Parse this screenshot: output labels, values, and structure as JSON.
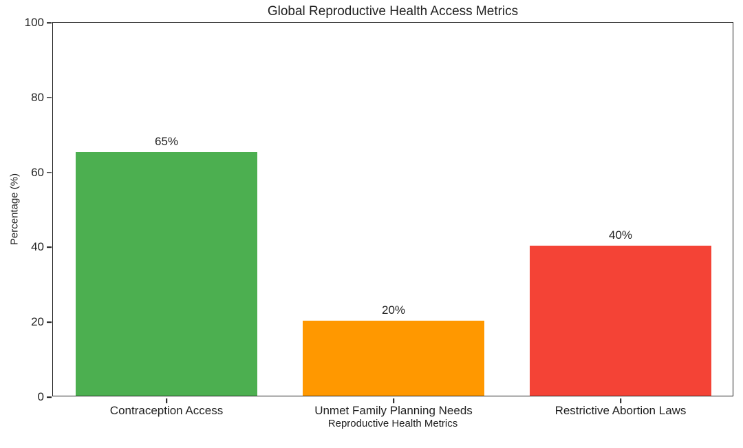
{
  "chart_data": {
    "type": "bar",
    "title": "Global Reproductive Health Access Metrics",
    "xlabel": "Reproductive Health Metrics",
    "ylabel": "Percentage (%)",
    "categories": [
      "Contraception Access",
      "Unmet Family Planning Needs",
      "Restrictive Abortion Laws"
    ],
    "values": [
      65,
      20,
      40
    ],
    "value_labels": [
      "65%",
      "20%",
      "40%"
    ],
    "bar_colors": [
      "#4caf50",
      "#ff9800",
      "#f44336"
    ],
    "ylim": [
      0,
      100
    ],
    "yticks": [
      0,
      20,
      40,
      60,
      80,
      100
    ],
    "bar_width_fraction": 0.8,
    "grid": false,
    "legend_position": "none",
    "background_color": "#ffffff",
    "axis_color": "#1a1a1a"
  }
}
